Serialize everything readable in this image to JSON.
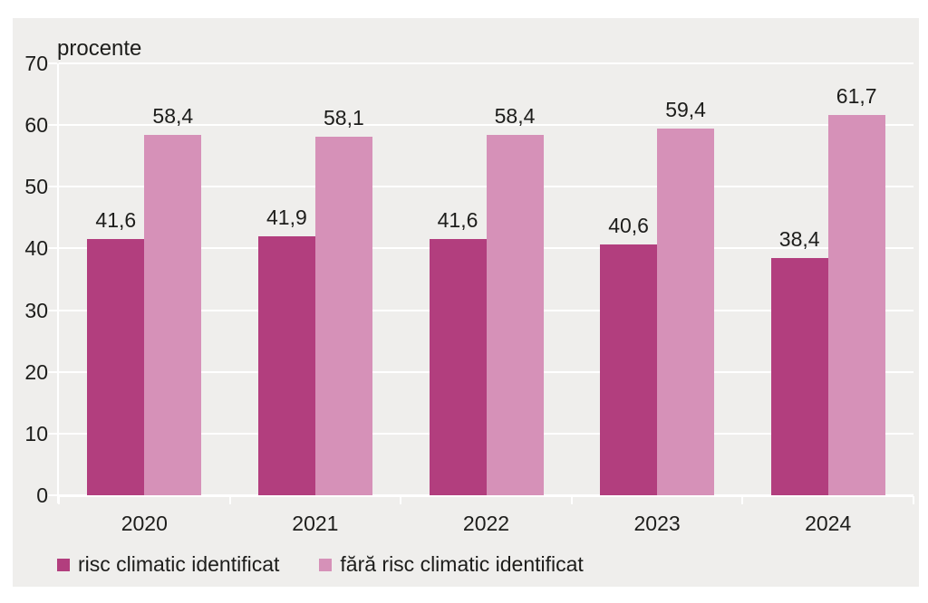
{
  "page": {
    "background": "#ffffff",
    "panel_background": "#efeeec",
    "grid_color": "#ffffff",
    "text_color": "#1d1d1b"
  },
  "chart_data": {
    "type": "bar",
    "ylabel": "procente",
    "xlabel": "",
    "categories": [
      "2020",
      "2021",
      "2022",
      "2023",
      "2024"
    ],
    "series": [
      {
        "name": "risc climatic identificat",
        "color": "#b23e7e",
        "values": [
          41.6,
          41.9,
          41.6,
          40.6,
          38.4
        ],
        "labels": [
          "41,6",
          "41,9",
          "41,6",
          "40,6",
          "38,4"
        ]
      },
      {
        "name": "fără risc climatic identificat",
        "color": "#d691b8",
        "values": [
          58.4,
          58.1,
          58.4,
          59.4,
          61.7
        ],
        "labels": [
          "58,4",
          "58,1",
          "58,4",
          "59,4",
          "61,7"
        ]
      }
    ],
    "ylim": [
      0,
      70
    ],
    "yticks": [
      0,
      10,
      20,
      30,
      40,
      50,
      60,
      70
    ],
    "grid": true,
    "legend_position": "bottom"
  }
}
